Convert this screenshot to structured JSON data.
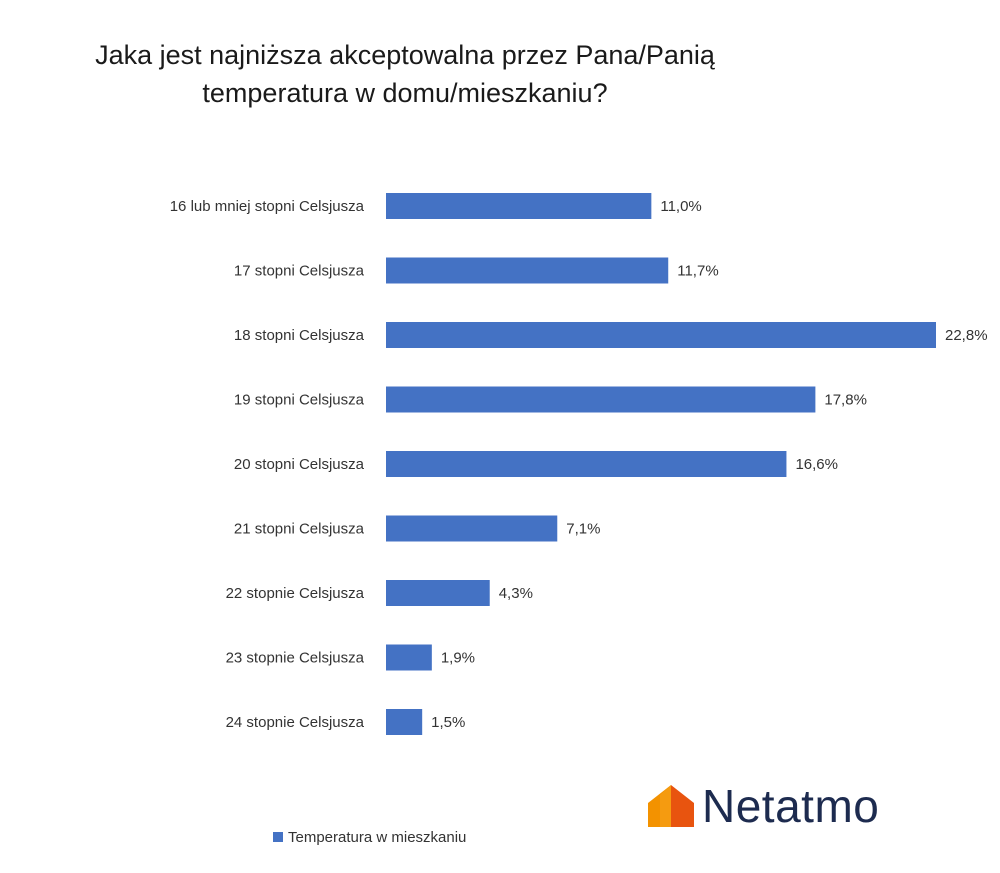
{
  "chart_data": {
    "type": "bar",
    "orientation": "horizontal",
    "title_lines": [
      "Jaka jest najniższa akceptowalna przez Pana/Panią",
      "temperatura w domu/mieszkaniu?"
    ],
    "categories": [
      "16 lub mniej stopni Celsjusza",
      "17 stopni Celsjusza",
      "18 stopni Celsjusza",
      "19 stopni Celsjusza",
      "20 stopni Celsjusza",
      "21 stopni Celsjusza",
      "22 stopnie Celsjusza",
      "23 stopnie Celsjusza",
      "24 stopnie Celsjusza"
    ],
    "series": [
      {
        "name": "Temperatura w mieszkaniu",
        "values": [
          11.0,
          11.7,
          22.8,
          17.8,
          16.6,
          7.1,
          4.3,
          1.9,
          1.5
        ],
        "labels": [
          "11,0%",
          "11,7%",
          "22,8%",
          "17,8%",
          "16,6%",
          "7,1%",
          "4,3%",
          "1,9%",
          "1,5%"
        ],
        "color": "#4472C4"
      }
    ],
    "unit": "%",
    "grid": false,
    "legend_position": "bottom"
  },
  "logo": {
    "text": "Netatmo",
    "colors": [
      "#F39200",
      "#E8540F"
    ]
  }
}
